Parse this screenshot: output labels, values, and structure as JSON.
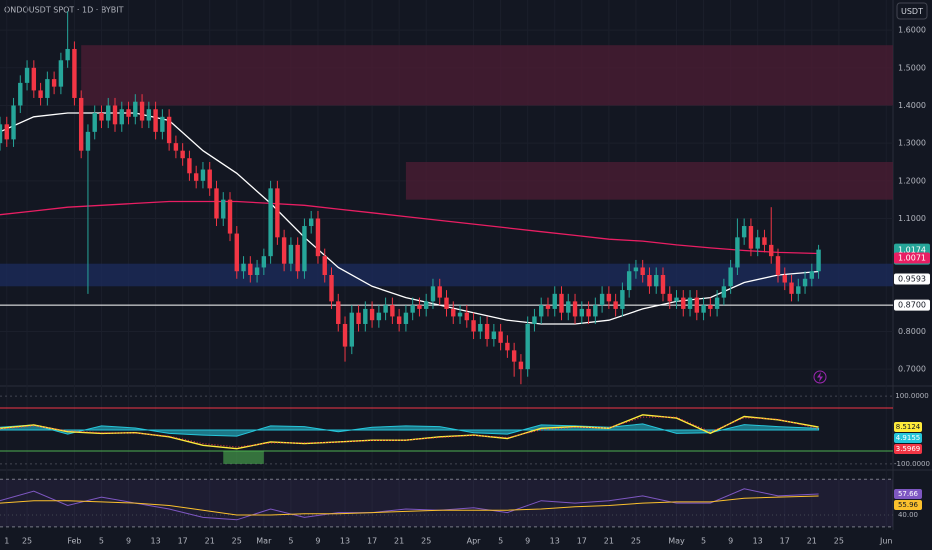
{
  "chart_data": {
    "type": "candlestick",
    "title": "ONDOUSDT SPOT · 1D · BYBIT",
    "currency": "USDT",
    "countdown": "08:06:15",
    "up_color": "#26a69a",
    "down_color": "#f23645",
    "xlim": [
      0,
      132
    ],
    "xticks": [
      {
        "value": 1,
        "label": "1"
      },
      {
        "value": 4,
        "label": "25"
      },
      {
        "value": 11,
        "label": "Feb"
      },
      {
        "value": 15,
        "label": "5"
      },
      {
        "value": 19,
        "label": "9"
      },
      {
        "value": 23,
        "label": "13"
      },
      {
        "value": 27,
        "label": "17"
      },
      {
        "value": 31,
        "label": "21"
      },
      {
        "value": 35,
        "label": "25"
      },
      {
        "value": 39,
        "label": "Mar"
      },
      {
        "value": 43,
        "label": "5"
      },
      {
        "value": 47,
        "label": "9"
      },
      {
        "value": 51,
        "label": "13"
      },
      {
        "value": 55,
        "label": "17"
      },
      {
        "value": 59,
        "label": "21"
      },
      {
        "value": 63,
        "label": "25"
      },
      {
        "value": 70,
        "label": "Apr"
      },
      {
        "value": 74,
        "label": "5"
      },
      {
        "value": 78,
        "label": "9"
      },
      {
        "value": 82,
        "label": "13"
      },
      {
        "value": 86,
        "label": "17"
      },
      {
        "value": 90,
        "label": "21"
      },
      {
        "value": 94,
        "label": "25"
      },
      {
        "value": 100,
        "label": "May"
      },
      {
        "value": 104,
        "label": "5"
      },
      {
        "value": 108,
        "label": "9"
      },
      {
        "value": 112,
        "label": "13"
      },
      {
        "value": 116,
        "label": "17"
      },
      {
        "value": 120,
        "label": "21"
      },
      {
        "value": 124,
        "label": "25"
      },
      {
        "value": 131,
        "label": "Jun"
      }
    ],
    "ylim": [
      0.658,
      1.68
    ],
    "yticks": [
      {
        "value": 1.6,
        "label": "1.6000"
      },
      {
        "value": 1.5,
        "label": "1.5000"
      },
      {
        "value": 1.4,
        "label": "1.4000"
      },
      {
        "value": 1.3,
        "label": "1.3000"
      },
      {
        "value": 1.2,
        "label": "1.2000"
      },
      {
        "value": 1.1,
        "label": "1.1000"
      },
      {
        "value": 0.8,
        "label": "0.8000"
      },
      {
        "value": 0.7,
        "label": "0.7000"
      }
    ],
    "open": [
      1.3,
      1.35,
      1.31,
      1.4,
      1.46,
      1.5,
      1.44,
      1.42,
      1.47,
      1.45,
      1.52,
      1.55,
      1.42,
      1.28,
      1.33,
      1.38,
      1.36,
      1.4,
      1.35,
      1.39,
      1.37,
      1.41,
      1.36,
      1.39,
      1.33,
      1.37,
      1.3,
      1.28,
      1.26,
      1.22,
      1.2,
      1.23,
      1.18,
      1.1,
      1.15,
      1.06,
      0.96,
      0.98,
      0.95,
      0.97,
      1.0,
      1.18,
      1.05,
      0.98,
      1.03,
      0.96,
      1.08,
      1.1,
      1.0,
      0.95,
      0.88,
      0.82,
      0.76,
      0.85,
      0.82,
      0.86,
      0.83,
      0.85,
      0.87,
      0.84,
      0.82,
      0.85,
      0.87,
      0.86,
      0.88,
      0.92,
      0.89,
      0.86,
      0.84,
      0.85,
      0.83,
      0.8,
      0.82,
      0.78,
      0.8,
      0.77,
      0.75,
      0.72,
      0.7,
      0.82,
      0.84,
      0.87,
      0.86,
      0.9,
      0.85,
      0.88,
      0.84,
      0.86,
      0.84,
      0.87,
      0.9,
      0.88,
      0.86,
      0.91,
      0.96,
      0.97,
      0.95,
      0.92,
      0.95,
      0.9,
      0.88,
      0.89,
      0.86,
      0.89,
      0.85,
      0.87,
      0.86,
      0.89,
      0.92,
      0.97,
      1.05,
      1.08,
      1.02,
      1.05,
      1.03,
      1.0,
      0.95,
      0.93,
      0.9,
      0.92,
      0.94,
      0.96
    ],
    "high": [
      1.37,
      1.37,
      1.42,
      1.48,
      1.52,
      1.52,
      1.46,
      1.49,
      1.49,
      1.54,
      1.65,
      1.57,
      1.44,
      1.35,
      1.4,
      1.4,
      1.42,
      1.42,
      1.41,
      1.41,
      1.43,
      1.43,
      1.41,
      1.41,
      1.39,
      1.39,
      1.32,
      1.3,
      1.28,
      1.24,
      1.25,
      1.25,
      1.2,
      1.17,
      1.17,
      1.08,
      1.0,
      1.0,
      0.99,
      1.02,
      1.2,
      1.2,
      1.07,
      1.05,
      1.05,
      1.1,
      1.12,
      1.12,
      1.02,
      0.97,
      0.9,
      0.84,
      0.87,
      0.87,
      0.88,
      0.88,
      0.87,
      0.89,
      0.89,
      0.86,
      0.87,
      0.89,
      0.89,
      0.9,
      0.94,
      0.94,
      0.91,
      0.88,
      0.87,
      0.87,
      0.85,
      0.84,
      0.84,
      0.82,
      0.82,
      0.79,
      0.77,
      0.74,
      0.84,
      0.86,
      0.89,
      0.89,
      0.92,
      0.92,
      0.9,
      0.9,
      0.88,
      0.88,
      0.89,
      0.92,
      0.92,
      0.9,
      0.93,
      0.98,
      0.99,
      0.99,
      0.97,
      0.97,
      0.97,
      0.92,
      0.91,
      0.91,
      0.91,
      0.91,
      0.89,
      0.89,
      0.91,
      0.94,
      0.99,
      1.1,
      1.1,
      1.1,
      1.07,
      1.07,
      1.13,
      1.02,
      0.97,
      0.95,
      0.94,
      0.96,
      0.98,
      1.03
    ],
    "low": [
      1.28,
      1.29,
      1.29,
      1.38,
      1.44,
      1.42,
      1.4,
      1.4,
      1.43,
      1.43,
      1.5,
      1.4,
      1.26,
      0.9,
      1.31,
      1.34,
      1.34,
      1.33,
      1.33,
      1.35,
      1.35,
      1.34,
      1.34,
      1.31,
      1.31,
      1.28,
      1.26,
      1.24,
      1.2,
      1.18,
      1.18,
      1.16,
      1.08,
      1.08,
      1.04,
      0.94,
      0.94,
      0.93,
      0.93,
      0.95,
      0.98,
      1.03,
      0.96,
      0.96,
      0.94,
      0.94,
      1.06,
      0.98,
      0.93,
      0.86,
      0.8,
      0.72,
      0.74,
      0.8,
      0.8,
      0.81,
      0.81,
      0.83,
      0.82,
      0.8,
      0.8,
      0.83,
      0.84,
      0.84,
      0.86,
      0.87,
      0.84,
      0.82,
      0.82,
      0.81,
      0.78,
      0.78,
      0.76,
      0.76,
      0.75,
      0.73,
      0.68,
      0.66,
      0.68,
      0.8,
      0.82,
      0.84,
      0.84,
      0.83,
      0.83,
      0.82,
      0.82,
      0.82,
      0.82,
      0.85,
      0.86,
      0.84,
      0.84,
      0.89,
      0.94,
      0.93,
      0.9,
      0.9,
      0.88,
      0.86,
      0.86,
      0.84,
      0.84,
      0.83,
      0.83,
      0.84,
      0.84,
      0.87,
      0.9,
      0.95,
      1.03,
      1.0,
      1.0,
      1.01,
      0.98,
      0.93,
      0.91,
      0.88,
      0.88,
      0.9,
      0.92,
      0.94
    ],
    "close": [
      1.35,
      1.31,
      1.4,
      1.46,
      1.5,
      1.44,
      1.42,
      1.47,
      1.45,
      1.52,
      1.55,
      1.42,
      1.28,
      1.33,
      1.38,
      1.36,
      1.4,
      1.35,
      1.39,
      1.37,
      1.41,
      1.36,
      1.39,
      1.33,
      1.37,
      1.3,
      1.28,
      1.26,
      1.22,
      1.2,
      1.23,
      1.18,
      1.1,
      1.15,
      1.06,
      0.96,
      0.98,
      0.95,
      0.97,
      1.0,
      1.18,
      1.05,
      0.98,
      1.03,
      0.96,
      1.08,
      1.1,
      1.0,
      0.95,
      0.88,
      0.82,
      0.76,
      0.85,
      0.82,
      0.86,
      0.83,
      0.85,
      0.87,
      0.84,
      0.82,
      0.85,
      0.87,
      0.86,
      0.88,
      0.92,
      0.89,
      0.86,
      0.84,
      0.85,
      0.83,
      0.8,
      0.82,
      0.78,
      0.8,
      0.77,
      0.75,
      0.72,
      0.7,
      0.82,
      0.84,
      0.87,
      0.86,
      0.9,
      0.85,
      0.88,
      0.84,
      0.86,
      0.84,
      0.87,
      0.9,
      0.88,
      0.86,
      0.91,
      0.96,
      0.97,
      0.95,
      0.92,
      0.95,
      0.9,
      0.88,
      0.89,
      0.86,
      0.89,
      0.85,
      0.87,
      0.86,
      0.89,
      0.92,
      0.97,
      1.05,
      1.08,
      1.02,
      1.05,
      1.03,
      1.0,
      0.95,
      0.93,
      0.9,
      0.92,
      0.94,
      0.96,
      1.0174
    ],
    "zones": [
      {
        "x": [
          12,
          132
        ],
        "y": [
          1.4,
          1.56
        ],
        "color": "#4a1d33"
      },
      {
        "x": [
          60,
          132
        ],
        "y": [
          1.15,
          1.25
        ],
        "color": "#4a1d33"
      },
      {
        "x": [
          0,
          132
        ],
        "y": [
          0.92,
          0.98
        ],
        "color": "#1c2b5a"
      }
    ],
    "hline": {
      "value": 0.87,
      "label": "0.8700",
      "color": "#ffffff"
    },
    "sample_x": [
      0,
      5,
      10,
      15,
      20,
      25,
      30,
      35,
      40,
      45,
      50,
      55,
      60,
      65,
      70,
      75,
      80,
      85,
      90,
      95,
      100,
      105,
      110,
      115,
      121
    ],
    "moving_averages": [
      {
        "color": "#ffffff",
        "values": [
          1.33,
          1.37,
          1.38,
          1.38,
          1.38,
          1.36,
          1.28,
          1.22,
          1.14,
          1.05,
          0.97,
          0.92,
          0.89,
          0.87,
          0.85,
          0.83,
          0.82,
          0.82,
          0.83,
          0.86,
          0.88,
          0.89,
          0.93,
          0.95,
          0.9593
        ]
      },
      {
        "color": "#e91e63",
        "values": [
          1.11,
          1.12,
          1.13,
          1.135,
          1.14,
          1.145,
          1.145,
          1.145,
          1.14,
          1.135,
          1.125,
          1.115,
          1.105,
          1.095,
          1.085,
          1.075,
          1.065,
          1.055,
          1.045,
          1.04,
          1.03,
          1.022,
          1.015,
          1.01,
          1.0071
        ]
      }
    ],
    "oscillator": {
      "ylim": [
        -112,
        118
      ],
      "yticks": [
        {
          "value": 100,
          "label": "100.0000"
        },
        {
          "value": -100,
          "label": "-100.0000"
        }
      ],
      "levels": [
        {
          "value": 65,
          "color": "#f23645"
        },
        {
          "value": -62,
          "color": "#4caf50"
        }
      ],
      "highlight": {
        "x": [
          33,
          39
        ],
        "y": [
          -100,
          -62
        ],
        "color": "#4caf50"
      },
      "series": [
        {
          "style": "area",
          "color": "#26c6da",
          "values": [
            8,
            15,
            -12,
            12,
            6,
            -10,
            -15,
            -18,
            12,
            10,
            -5,
            8,
            12,
            10,
            -8,
            -12,
            15,
            12,
            8,
            18,
            -10,
            -8,
            16,
            10,
            4.9155
          ]
        },
        {
          "style": "line",
          "color": "#ffeb3b",
          "values": [
            5,
            15,
            -5,
            -10,
            -8,
            -20,
            -45,
            -55,
            -35,
            -40,
            -35,
            -30,
            -30,
            -20,
            -15,
            -25,
            5,
            10,
            5,
            45,
            35,
            -10,
            40,
            30,
            8.5124
          ]
        },
        {
          "style": "dotted",
          "color": "#f23645",
          "values": [
            3,
            12,
            -2,
            -8,
            -9,
            -18,
            -40,
            -50,
            -38,
            -38,
            -36,
            -31,
            -30,
            -22,
            -16,
            -22,
            0,
            8,
            6,
            38,
            38,
            -5,
            36,
            32,
            3.5969
          ]
        }
      ]
    },
    "rsi": {
      "ylim": [
        27.4,
        76.1
      ],
      "band": [
        30,
        70
      ],
      "yticks": [
        {
          "value": 40,
          "label": "40.00"
        }
      ],
      "series": [
        {
          "color": "#7e57c2",
          "values": [
            52,
            60,
            48,
            55,
            50,
            45,
            38,
            36,
            45,
            38,
            42,
            42,
            45,
            44,
            46,
            42,
            52,
            50,
            52,
            56,
            50,
            50,
            62,
            56,
            57.66
          ]
        },
        {
          "color": "#fbc02d",
          "values": [
            50,
            52,
            52,
            51,
            50,
            48,
            44,
            40,
            40,
            41,
            41,
            42,
            43,
            44,
            44,
            44,
            45,
            47,
            48,
            50,
            51,
            51,
            54,
            55,
            55.96
          ]
        }
      ]
    }
  }
}
